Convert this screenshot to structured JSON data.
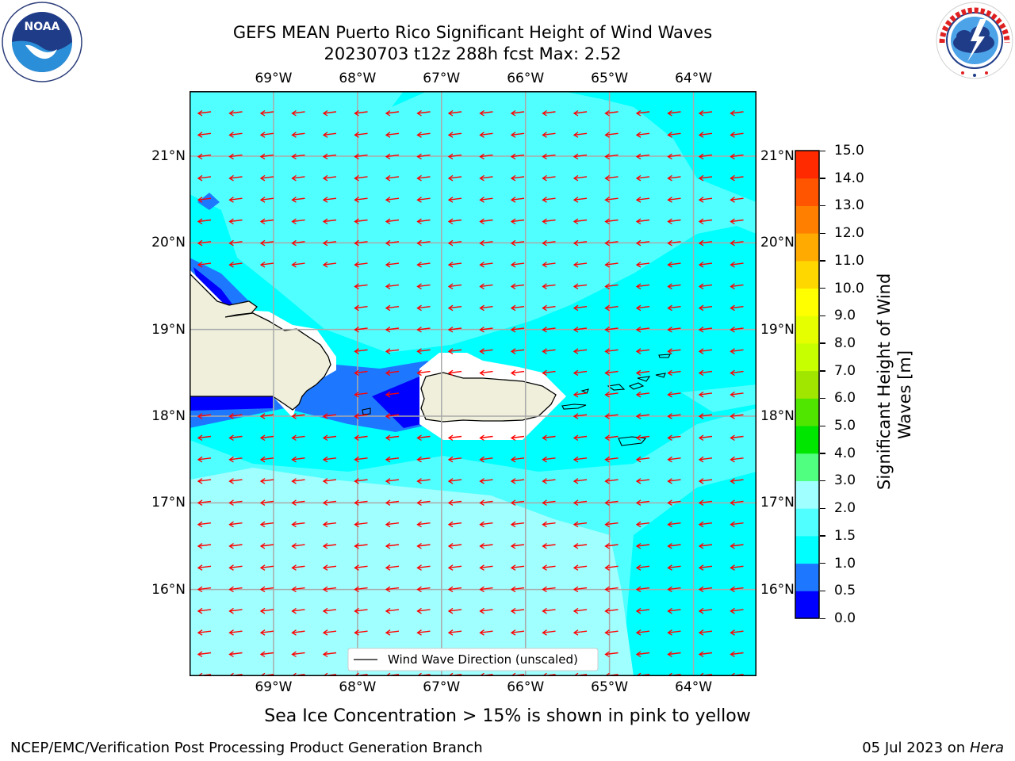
{
  "header": {
    "title_line1": "GEFS MEAN Puerto Rico Significant Height of Wind Waves",
    "title_line2": "20230703 t12z 288h fcst   Max: 2.52"
  },
  "logos": {
    "left": {
      "name": "noaa-logo",
      "text": "NOAA",
      "ring_text": "NATIONAL OCEANIC AND ATMOSPHERIC ADMINISTRATION · U.S. DEPARTMENT OF COMMERCE"
    },
    "right": {
      "name": "nws-logo",
      "ring_text": "NATIONAL WEATHER SERVICE"
    }
  },
  "map": {
    "lon_labels": [
      "69°W",
      "68°W",
      "67°W",
      "66°W",
      "65°W",
      "64°W"
    ],
    "lat_labels": [
      "21°N",
      "20°N",
      "19°N",
      "18°N",
      "17°N",
      "16°N"
    ],
    "lon_values": [
      -69,
      -68,
      -67,
      -66,
      -65,
      -64
    ],
    "lat_values": [
      21,
      20,
      19,
      18,
      17,
      16
    ],
    "extent": {
      "lon_min": -70,
      "lon_max": -63.25,
      "lat_min": 15,
      "lat_max": 21.75
    },
    "legend_label": "Wind Wave Direction (unscaled)",
    "arrow_color": "#ff0000",
    "land_color": "#efefdb",
    "ocean_color_primary": "#00ffff"
  },
  "colorbar": {
    "label": "Significant Height of Wind Waves [m]",
    "label_line1": "Significant Height of Wind",
    "label_line2": "Waves [m]",
    "ticks": [
      "15.0",
      "14.0",
      "13.0",
      "12.0",
      "11.0",
      "10.0",
      "9.0",
      "8.0",
      "7.0",
      "6.0",
      "5.0",
      "4.0",
      "3.0",
      "2.0",
      "1.5",
      "1.0",
      "0.5",
      "0.0"
    ],
    "levels": [
      0.0,
      0.5,
      1.0,
      1.5,
      2.0,
      3.0,
      4.0,
      5.0,
      6.0,
      7.0,
      8.0,
      9.0,
      10.0,
      11.0,
      12.0,
      13.0,
      14.0,
      15.0
    ],
    "colors": [
      "#0000ff",
      "#1e78ff",
      "#00ffff",
      "#50ffff",
      "#a0ffff",
      "#50ff80",
      "#00e600",
      "#50e600",
      "#a0e600",
      "#c8ff00",
      "#e6ff00",
      "#ffff00",
      "#ffd700",
      "#ffaa00",
      "#ff8000",
      "#ff5500",
      "#ff2a00",
      "#ff0000"
    ]
  },
  "footer": {
    "note": "Sea Ice Concentration > 15% is shown in pink to yellow",
    "left": "NCEP/EMC/Verification Post Processing Product Generation Branch",
    "right_prefix": "05 Jul 2023 on ",
    "right_machine": "Hera"
  }
}
